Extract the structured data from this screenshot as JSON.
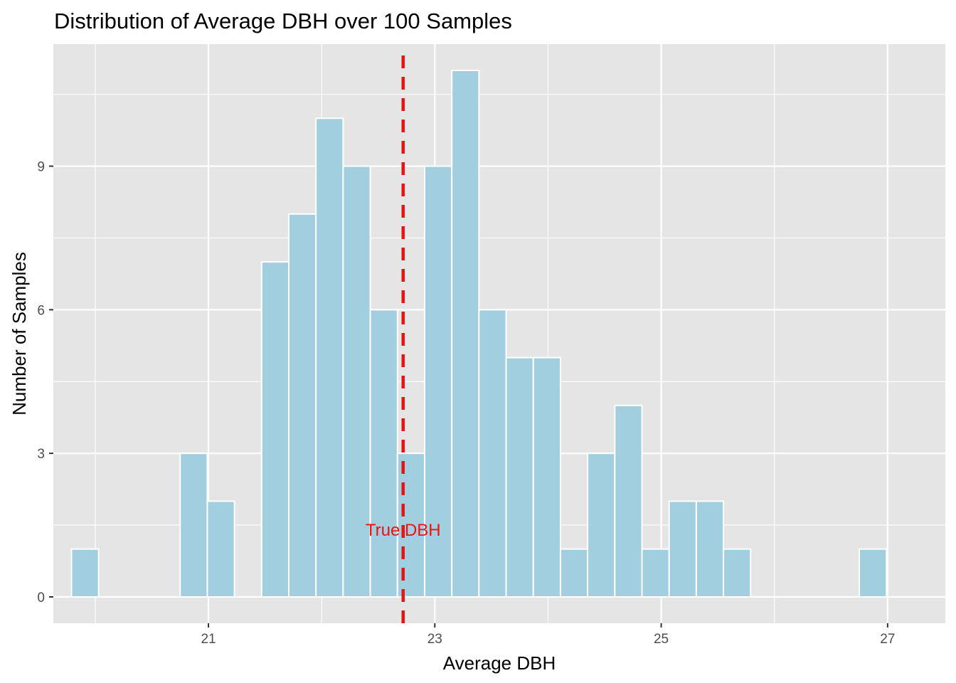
{
  "chart_data": {
    "type": "histogram",
    "title": "Distribution of Average DBH over 100 Samples",
    "xlabel": "Average DBH",
    "ylabel": "Number of Samples",
    "xlim": [
      19.63,
      27.51
    ],
    "ylim": [
      -0.55,
      11.55
    ],
    "x_ticks": [
      21,
      23,
      25,
      27
    ],
    "x_tick_labels": [
      "21",
      "23",
      "25",
      "27"
    ],
    "x_minor_gridlines": [
      20,
      22,
      24,
      26
    ],
    "y_ticks": [
      0,
      3,
      6,
      9
    ],
    "y_tick_labels": [
      "0",
      "3",
      "6",
      "9"
    ],
    "y_minor_gridlines": [
      1.5,
      4.5,
      7.5,
      10.5
    ],
    "bin_width": 0.24,
    "bins": [
      {
        "start": 19.79,
        "count": 1
      },
      {
        "start": 20.03,
        "count": 0
      },
      {
        "start": 20.27,
        "count": 0
      },
      {
        "start": 20.51,
        "count": 0
      },
      {
        "start": 20.75,
        "count": 3
      },
      {
        "start": 20.99,
        "count": 2
      },
      {
        "start": 21.23,
        "count": 0
      },
      {
        "start": 21.47,
        "count": 7
      },
      {
        "start": 21.71,
        "count": 8
      },
      {
        "start": 21.95,
        "count": 10
      },
      {
        "start": 22.19,
        "count": 9
      },
      {
        "start": 22.43,
        "count": 6
      },
      {
        "start": 22.67,
        "count": 3
      },
      {
        "start": 22.91,
        "count": 9
      },
      {
        "start": 23.15,
        "count": 11
      },
      {
        "start": 23.39,
        "count": 6
      },
      {
        "start": 23.63,
        "count": 5
      },
      {
        "start": 23.87,
        "count": 5
      },
      {
        "start": 24.11,
        "count": 1
      },
      {
        "start": 24.35,
        "count": 3
      },
      {
        "start": 24.59,
        "count": 4
      },
      {
        "start": 24.83,
        "count": 1
      },
      {
        "start": 25.07,
        "count": 2
      },
      {
        "start": 25.31,
        "count": 2
      },
      {
        "start": 25.55,
        "count": 1
      },
      {
        "start": 25.79,
        "count": 0
      },
      {
        "start": 26.03,
        "count": 0
      },
      {
        "start": 26.27,
        "count": 0
      },
      {
        "start": 26.51,
        "count": 0
      },
      {
        "start": 26.75,
        "count": 1
      }
    ],
    "reference_line": {
      "x": 22.72,
      "label": "True DBH",
      "style": "dashed",
      "color": "#EE1111"
    },
    "annotation": {
      "text": "True DBH",
      "x": 22.72,
      "y": 1.4,
      "color": "#EE1111"
    },
    "colors": {
      "panel_background": "#E5E5E5",
      "gridline": "#FFFFFF",
      "bar_fill": "#A1CFE0",
      "bar_stroke": "#FFFFFF",
      "tick_color": "#333333"
    },
    "grid": true,
    "legend": "none"
  }
}
